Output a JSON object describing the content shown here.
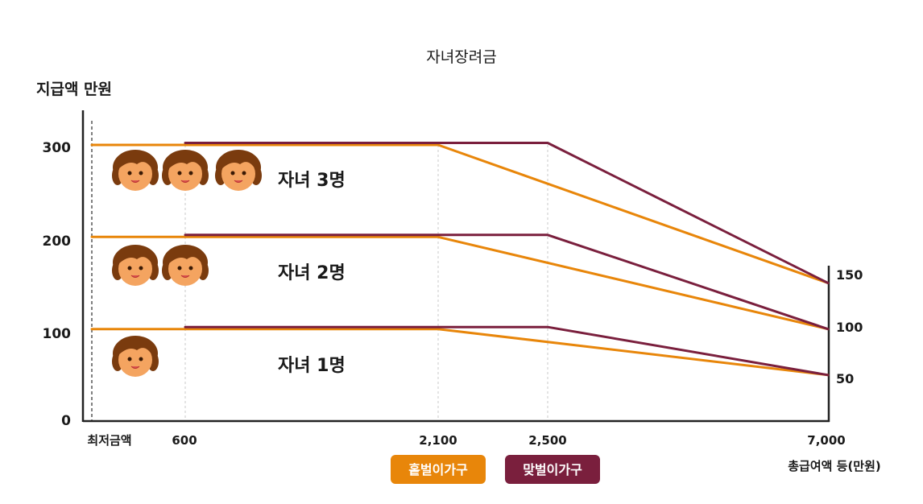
{
  "colors": {
    "single": "#E8860A",
    "dual": "#7A1F3D",
    "axis": "#222222",
    "grid": "#c8c8c8",
    "face": "#F4A460",
    "hair": "#7A3B0E"
  },
  "chart_data": {
    "type": "line",
    "title": "자녀장려금",
    "ylabel": "지급액 만원",
    "xlabel": "총급여액 등(만원)",
    "x_tick_labels": [
      "최저금액",
      "600",
      "2,100",
      "2,500",
      "7,000"
    ],
    "y_tick_labels": [
      "0",
      "100",
      "200",
      "300"
    ],
    "right_tick_labels": [
      "50",
      "100",
      "150"
    ],
    "ylim": [
      0,
      350
    ],
    "legend": [
      {
        "key": "single",
        "label": "홑벌이가구"
      },
      {
        "key": "dual",
        "label": "맞벌이가구"
      }
    ],
    "groups": [
      {
        "label": "자녀 3명",
        "children": 3
      },
      {
        "label": "자녀 2명",
        "children": 2
      },
      {
        "label": "자녀 1명",
        "children": 1
      }
    ],
    "series": [
      {
        "key": "single",
        "children": 3,
        "points": [
          [
            0,
            300
          ],
          [
            600,
            300
          ],
          [
            2100,
            300
          ],
          [
            7000,
            150
          ]
        ]
      },
      {
        "key": "dual",
        "children": 3,
        "points": [
          [
            600,
            300
          ],
          [
            2500,
            300
          ],
          [
            7000,
            150
          ]
        ]
      },
      {
        "key": "single",
        "children": 2,
        "points": [
          [
            0,
            200
          ],
          [
            600,
            200
          ],
          [
            2100,
            200
          ],
          [
            7000,
            100
          ]
        ]
      },
      {
        "key": "dual",
        "children": 2,
        "points": [
          [
            600,
            200
          ],
          [
            2500,
            200
          ],
          [
            7000,
            100
          ]
        ]
      },
      {
        "key": "single",
        "children": 1,
        "points": [
          [
            0,
            100
          ],
          [
            600,
            100
          ],
          [
            2100,
            100
          ],
          [
            7000,
            50
          ]
        ]
      },
      {
        "key": "dual",
        "children": 1,
        "points": [
          [
            600,
            100
          ],
          [
            2500,
            100
          ],
          [
            7000,
            50
          ]
        ]
      }
    ]
  }
}
